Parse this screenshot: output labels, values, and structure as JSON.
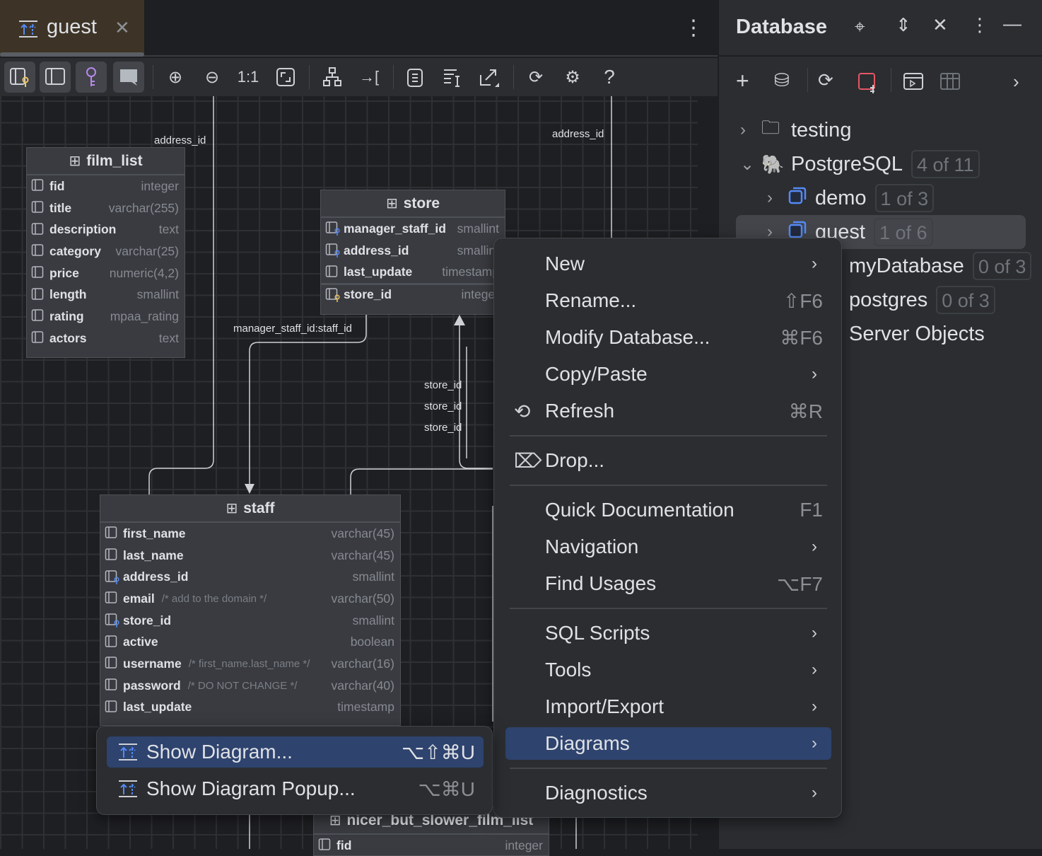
{
  "editor": {
    "tab": {
      "label": "guest",
      "icon": "diagram-icon"
    },
    "toolbar": {
      "one_to_one": "1:1"
    }
  },
  "diagram": {
    "tables": [
      {
        "name": "film_list",
        "icon": "view-icon",
        "columns": [
          {
            "name": "fid",
            "type": "integer"
          },
          {
            "name": "title",
            "type": "varchar(255)"
          },
          {
            "name": "description",
            "type": "text"
          },
          {
            "name": "category",
            "type": "varchar(25)"
          },
          {
            "name": "price",
            "type": "numeric(4,2)"
          },
          {
            "name": "length",
            "type": "smallint"
          },
          {
            "name": "rating",
            "type": "mpaa_rating"
          },
          {
            "name": "actors",
            "type": "text"
          }
        ]
      },
      {
        "name": "store",
        "icon": "table-icon",
        "columns": [
          {
            "name": "manager_staff_id",
            "type": "smallint",
            "key": "fk"
          },
          {
            "name": "address_id",
            "type": "smallint",
            "key": "fk"
          },
          {
            "name": "last_update",
            "type": "timestamp"
          },
          {
            "name": "store_id",
            "type": "integer",
            "key": "pk",
            "sep": true
          }
        ]
      },
      {
        "name": "staff",
        "icon": "table-icon",
        "columns": [
          {
            "name": "first_name",
            "type": "varchar(45)"
          },
          {
            "name": "last_name",
            "type": "varchar(45)"
          },
          {
            "name": "address_id",
            "type": "smallint",
            "key": "fk"
          },
          {
            "name": "email",
            "comment": "/* add to the domain */",
            "type": "varchar(50)"
          },
          {
            "name": "store_id",
            "type": "smallint",
            "key": "fk"
          },
          {
            "name": "active",
            "type": "boolean"
          },
          {
            "name": "username",
            "comment": "/* first_name.last_name */",
            "type": "varchar(16)"
          },
          {
            "name": "password",
            "comment": "/* DO NOT CHANGE */",
            "type": "varchar(40)"
          },
          {
            "name": "last_update",
            "type": "timestamp"
          }
        ]
      },
      {
        "name": "nicer_but_slower_film_list",
        "icon": "view-icon",
        "columns": [
          {
            "name": "fid",
            "type": "integer"
          }
        ]
      }
    ],
    "edge_labels": [
      "address_id",
      "address_id",
      "manager_staff_id:staff_id",
      "store_id",
      "store_id",
      "store_id"
    ]
  },
  "panel": {
    "title": "Database",
    "tree": [
      {
        "label": "testing",
        "icon": "folder-icon",
        "expanded": false
      },
      {
        "label": "PostgreSQL",
        "icon": "postgresql-icon",
        "badge": "4 of 11",
        "expanded": true
      },
      {
        "label": "demo",
        "icon": "database-icon",
        "badge": "1 of 3"
      },
      {
        "label": "guest",
        "icon": "database-icon",
        "badge": "1 of 6",
        "selected": true
      },
      {
        "label": "myDatabase",
        "badge": "0 of 3"
      },
      {
        "label": "postgres",
        "badge": "0 of 3"
      },
      {
        "label": "Server Objects"
      }
    ]
  },
  "context_menu": {
    "items": [
      {
        "label": "New",
        "submenu": true
      },
      {
        "label": "Rename...",
        "shortcut": "⇧F6"
      },
      {
        "label": "Modify Database...",
        "shortcut": "⌘F6"
      },
      {
        "label": "Copy/Paste",
        "submenu": true
      },
      {
        "label": "Refresh",
        "shortcut": "⌘R",
        "icon": "refresh-icon"
      },
      {
        "label": "Drop...",
        "icon": "delete-icon"
      },
      {
        "label": "Quick Documentation",
        "shortcut": "F1"
      },
      {
        "label": "Navigation",
        "submenu": true
      },
      {
        "label": "Find Usages",
        "shortcut": "⌥F7"
      },
      {
        "label": "SQL Scripts",
        "submenu": true
      },
      {
        "label": "Tools",
        "submenu": true
      },
      {
        "label": "Import/Export",
        "submenu": true
      },
      {
        "label": "Diagrams",
        "submenu": true,
        "highlighted": true
      },
      {
        "label": "Diagnostics",
        "submenu": true
      }
    ]
  },
  "diagrams_submenu": {
    "items": [
      {
        "label": "Show Diagram...",
        "shortcut": "⌥⇧⌘U",
        "highlighted": true
      },
      {
        "label": "Show Diagram Popup...",
        "shortcut": "⌥⌘U"
      }
    ]
  },
  "colors": {
    "accent": "#2e436e",
    "key_blue": "#548af7",
    "key_gold": "#f2c55c",
    "tab_bg": "#3d3427"
  }
}
